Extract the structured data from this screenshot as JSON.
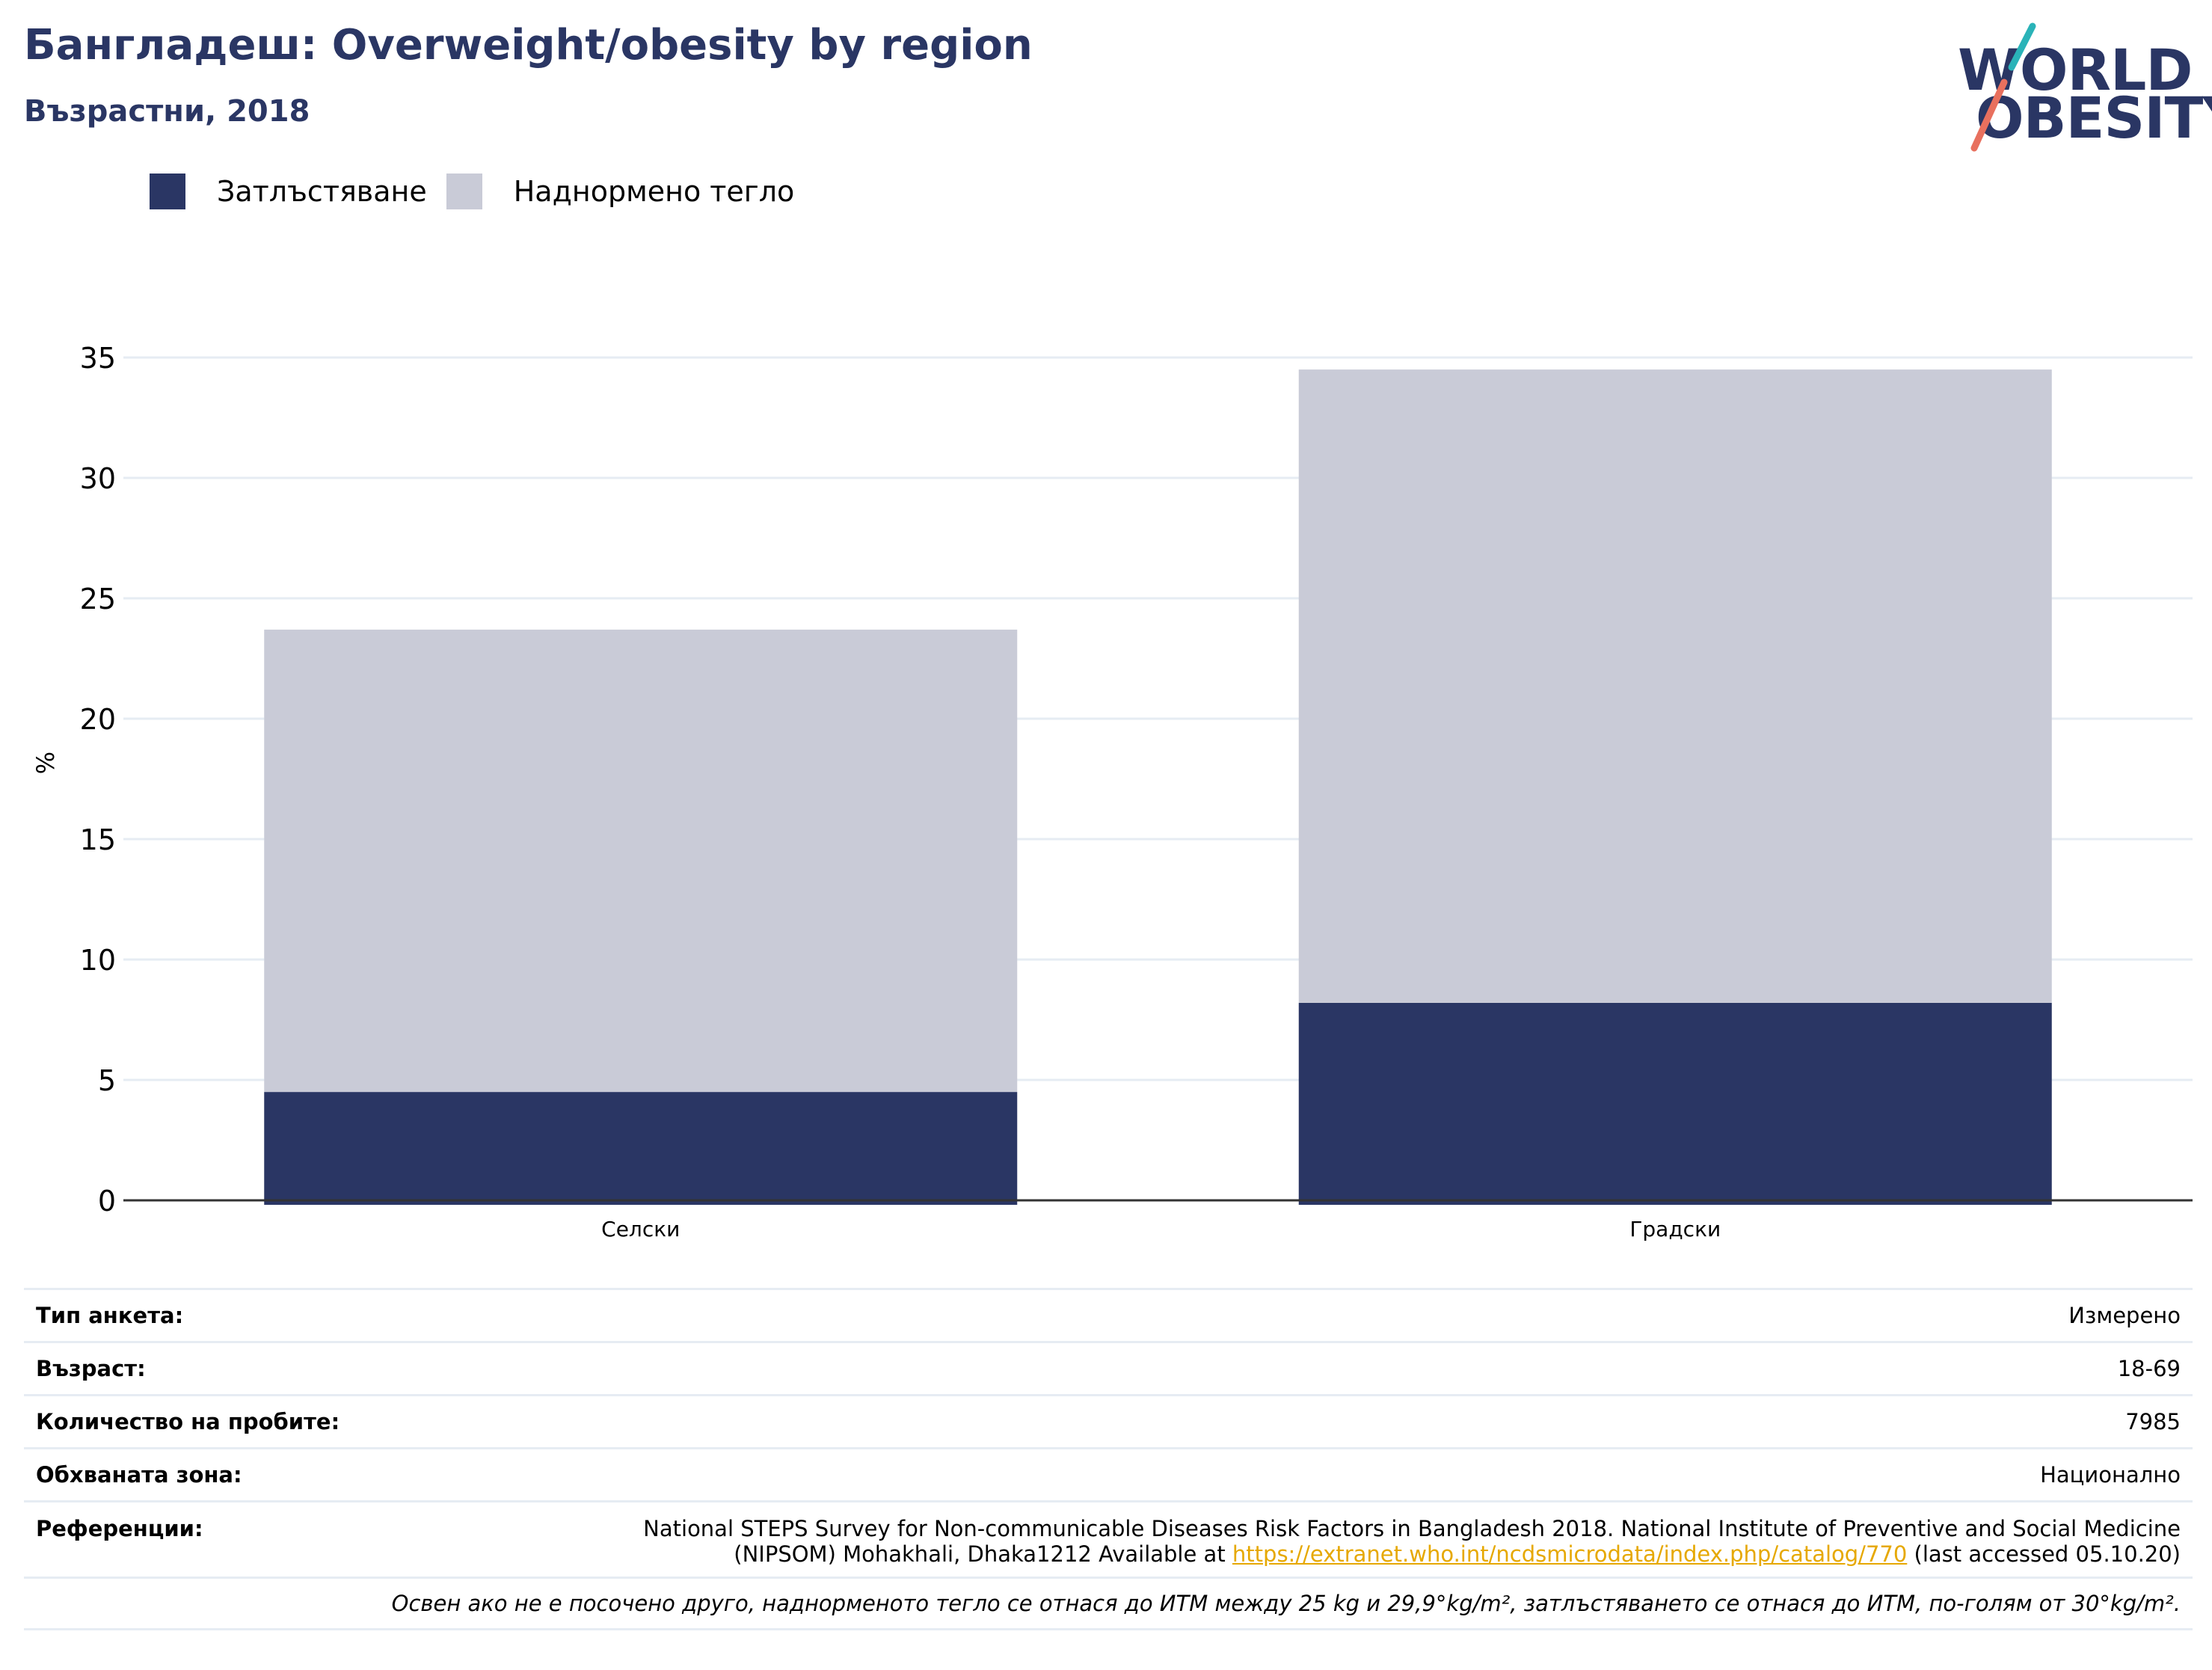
{
  "header": {
    "title": "Бангладеш: Overweight/obesity by region",
    "subtitle": "Възрастни, 2018"
  },
  "logo": {
    "line1": "WORLD",
    "line2": "OBESITY",
    "colors": {
      "text": "#2a3664",
      "slash_top": "#2ab3b8",
      "slash_bottom": "#e8705e"
    }
  },
  "colors": {
    "obesity": "#2a3664",
    "overweight": "#c9cbd7",
    "grid": "#e6ecf3",
    "axis": "#333333",
    "link": "#e6a800"
  },
  "chart_data": {
    "type": "bar",
    "stacked": true,
    "categories": [
      "Селски",
      "Градски"
    ],
    "series": [
      {
        "name": "Затлъстяване",
        "values": [
          4.5,
          8.2
        ],
        "color": "#2a3664"
      },
      {
        "name": "Наднормено тегло",
        "values": [
          19.2,
          26.3
        ],
        "color": "#c9cbd7"
      }
    ],
    "ylabel": "%",
    "ylim": [
      0,
      35
    ],
    "yticks": [
      0,
      5,
      10,
      15,
      20,
      25,
      30,
      35
    ],
    "grid": true,
    "legend_position": "top-left"
  },
  "info": {
    "survey_type": {
      "label": "Тип анкета:",
      "value": "Измерено"
    },
    "age": {
      "label": "Възраст:",
      "value": "18-69"
    },
    "sample_size": {
      "label": "Количество на пробите:",
      "value": "7985"
    },
    "area": {
      "label": "Обхваната зона:",
      "value": "Национално"
    },
    "references": {
      "label": "Референции:",
      "line1": "National STEPS Survey for Non-communicable Diseases Risk Factors in Bangladesh 2018. National Institute of Preventive and Social Medicine",
      "line2_prefix": "(NIPSOM) Mohakhali, Dhaka1212 Available at ",
      "link": "https://extranet.who.int/ncdsmicrodata/index.php/catalog/770",
      "line2_suffix": " (last accessed 05.10.20)"
    },
    "note": "Освен ако не е посочено друго, наднорменото тегло се отнася до ИТМ между 25 kg и 29,9°kg/m², затлъстяването се отнася до ИТМ, по-голям от 30°kg/m²."
  }
}
